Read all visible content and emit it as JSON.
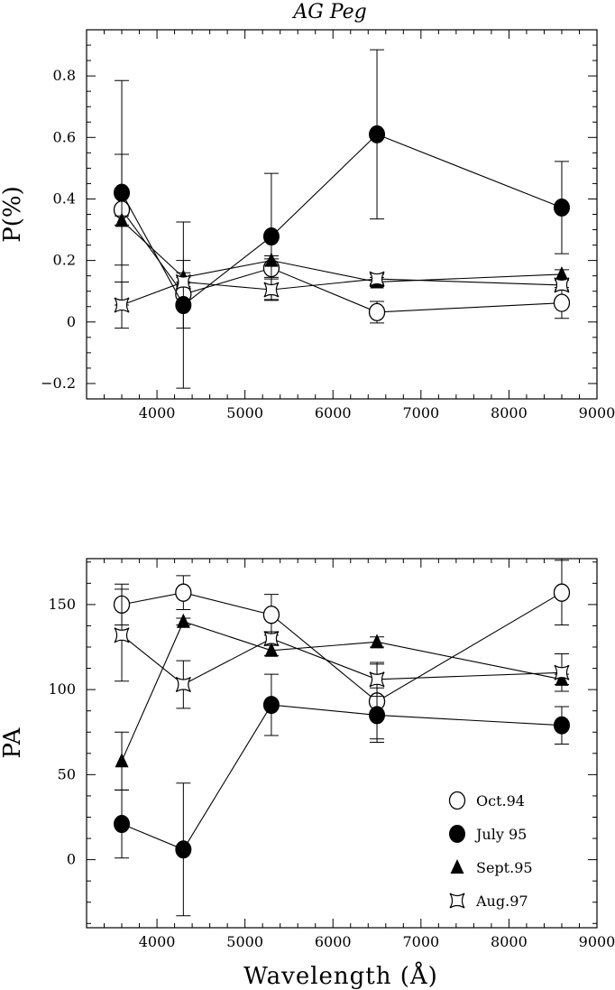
{
  "title": "AG Peg",
  "xlabel": "Wavelength (Å)",
  "legend": [
    "Oct.94",
    "July 95",
    "Sept.95",
    "Aug.97"
  ],
  "chart_data": [
    {
      "type": "scatter",
      "title": "AG Peg",
      "xlabel": "",
      "ylabel": "P(%)",
      "xlim": [
        3200,
        9000
      ],
      "ylim": [
        -0.25,
        0.95
      ],
      "x_ticks": [
        4000,
        5000,
        6000,
        7000,
        8000,
        9000
      ],
      "y_ticks": [
        -0.2,
        0,
        0.2,
        0.4,
        0.6,
        0.8
      ],
      "x_tick_labels": [
        "4000",
        "5000",
        "6000",
        "7000",
        "8000",
        "9000"
      ],
      "y_tick_labels": [
        "−0.2",
        "0",
        "0.2",
        "0.4",
        "0.6",
        "0.8"
      ],
      "series": [
        {
          "name": "Oct.94",
          "marker": "open-circle",
          "x": [
            3600,
            4300,
            5300,
            6500,
            8600
          ],
          "y": [
            0.365,
            0.09,
            0.175,
            0.032,
            0.062
          ],
          "err": [
            0.18,
            0.11,
            0.03,
            0.035,
            0.05
          ]
        },
        {
          "name": "July 95",
          "marker": "filled-circle",
          "x": [
            3600,
            4300,
            5300,
            6500,
            8600
          ],
          "y": [
            0.42,
            0.055,
            0.278,
            0.61,
            0.372
          ],
          "err": [
            0.365,
            0.27,
            0.205,
            0.275,
            0.15
          ]
        },
        {
          "name": "Sept.95",
          "marker": "filled-triangle",
          "x": [
            3600,
            4300,
            5300,
            6500,
            8600
          ],
          "y": [
            0.33,
            0.145,
            0.2,
            0.13,
            0.155
          ],
          "err": [
            0.015,
            0.015,
            0.015,
            0.015,
            0.015
          ]
        },
        {
          "name": "Aug.97",
          "marker": "star",
          "x": [
            3600,
            4300,
            5300,
            6500,
            8600
          ],
          "y": [
            0.055,
            0.13,
            0.105,
            0.14,
            0.12
          ],
          "err": [
            0.075,
            0.015,
            0.035,
            0.015,
            0.015
          ]
        }
      ]
    },
    {
      "type": "scatter",
      "xlabel": "Wavelength (Å)",
      "ylabel": "PA",
      "xlim": [
        3200,
        9000
      ],
      "ylim": [
        -40,
        177
      ],
      "x_ticks": [
        4000,
        5000,
        6000,
        7000,
        8000,
        9000
      ],
      "y_ticks": [
        0,
        50,
        100,
        150
      ],
      "x_tick_labels": [
        "4000",
        "5000",
        "6000",
        "7000",
        "8000",
        "9000"
      ],
      "y_tick_labels": [
        "0",
        "50",
        "100",
        "150"
      ],
      "legend_position": "bottom-right",
      "series": [
        {
          "name": "Oct.94",
          "marker": "open-circle",
          "x": [
            3600,
            4300,
            5300,
            6500,
            8600
          ],
          "y": [
            150,
            157,
            144,
            93,
            157
          ],
          "err": [
            12,
            10,
            12,
            22,
            19
          ]
        },
        {
          "name": "July 95",
          "marker": "filled-circle",
          "x": [
            3600,
            4300,
            5300,
            6500,
            8600
          ],
          "y": [
            21,
            6,
            91,
            85,
            79
          ],
          "err": [
            20,
            39,
            18,
            16,
            11
          ]
        },
        {
          "name": "Sept.95",
          "marker": "filled-triangle",
          "x": [
            3600,
            4300,
            5300,
            6500,
            8600
          ],
          "y": [
            58,
            140,
            123,
            128,
            106
          ],
          "err": [
            17,
            2,
            3,
            3,
            3
          ]
        },
        {
          "name": "Aug.97",
          "marker": "star",
          "x": [
            3600,
            4300,
            5300,
            6500,
            8600
          ],
          "y": [
            132,
            103,
            130,
            106,
            110
          ],
          "err": [
            27,
            14,
            4,
            10,
            11
          ]
        }
      ]
    }
  ]
}
